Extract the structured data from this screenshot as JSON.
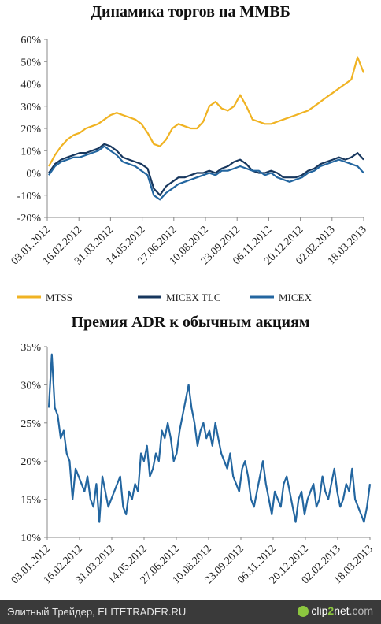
{
  "chart_data": [
    {
      "type": "line",
      "title": "Динамика торгов на ММВБ",
      "ylim": [
        -0.2,
        0.6
      ],
      "yticks": [
        "60%",
        "50%",
        "40%",
        "30%",
        "20%",
        "10%",
        "0%",
        "-10%",
        "-20%"
      ],
      "xticks": [
        "03.01.2012",
        "16.02.2012",
        "31.03.2012",
        "14.05.2012",
        "27.06.2012",
        "10.08.2012",
        "23.09.2012",
        "06.11.2012",
        "20.12.2012",
        "02.02.2013",
        "18.03.2013"
      ],
      "legend_position": "bottom",
      "series": [
        {
          "name": "MTSS",
          "color": "#f0b323",
          "values": [
            0.03,
            0.08,
            0.12,
            0.15,
            0.17,
            0.18,
            0.2,
            0.21,
            0.22,
            0.24,
            0.26,
            0.27,
            0.26,
            0.25,
            0.24,
            0.22,
            0.18,
            0.13,
            0.12,
            0.15,
            0.2,
            0.22,
            0.21,
            0.2,
            0.2,
            0.23,
            0.3,
            0.32,
            0.29,
            0.28,
            0.3,
            0.35,
            0.3,
            0.24,
            0.23,
            0.22,
            0.22,
            0.23,
            0.24,
            0.25,
            0.26,
            0.27,
            0.28,
            0.3,
            0.32,
            0.34,
            0.36,
            0.38,
            0.4,
            0.42,
            0.52,
            0.45
          ]
        },
        {
          "name": "MICEX TLC",
          "color": "#17375e",
          "values": [
            0.0,
            0.04,
            0.06,
            0.07,
            0.08,
            0.09,
            0.09,
            0.1,
            0.11,
            0.13,
            0.12,
            0.1,
            0.07,
            0.06,
            0.05,
            0.04,
            0.02,
            -0.07,
            -0.1,
            -0.06,
            -0.04,
            -0.02,
            -0.02,
            -0.01,
            0.0,
            0.0,
            0.01,
            0.0,
            0.02,
            0.03,
            0.05,
            0.06,
            0.04,
            0.01,
            0.0,
            0.0,
            0.01,
            0.0,
            -0.02,
            -0.02,
            -0.02,
            -0.01,
            0.01,
            0.02,
            0.04,
            0.05,
            0.06,
            0.07,
            0.06,
            0.07,
            0.09,
            0.06
          ]
        },
        {
          "name": "MICEX",
          "color": "#2366a0",
          "values": [
            -0.01,
            0.03,
            0.05,
            0.06,
            0.07,
            0.07,
            0.08,
            0.09,
            0.1,
            0.12,
            0.1,
            0.08,
            0.05,
            0.04,
            0.03,
            0.01,
            -0.01,
            -0.1,
            -0.12,
            -0.09,
            -0.07,
            -0.05,
            -0.04,
            -0.03,
            -0.02,
            -0.01,
            0.0,
            -0.01,
            0.01,
            0.01,
            0.02,
            0.03,
            0.02,
            0.01,
            0.01,
            -0.01,
            0.0,
            -0.02,
            -0.03,
            -0.04,
            -0.03,
            -0.02,
            0.0,
            0.01,
            0.03,
            0.04,
            0.05,
            0.06,
            0.05,
            0.04,
            0.03,
            0.0
          ]
        }
      ]
    },
    {
      "type": "line",
      "title": "Премия ADR к обычным акциям",
      "ylim": [
        0.1,
        0.35
      ],
      "yticks": [
        "35%",
        "30%",
        "25%",
        "20%",
        "15%",
        "10%"
      ],
      "xticks": [
        "03.01.2012",
        "16.02.2012",
        "31.03.2012",
        "14.05.2012",
        "27.06.2012",
        "10.08.2012",
        "23.09.2012",
        "06.11.2012",
        "20.12.2012",
        "02.02.2013",
        "18.03.2013"
      ],
      "series": [
        {
          "color": "#2366a0",
          "values": [
            0.27,
            0.34,
            0.27,
            0.26,
            0.23,
            0.24,
            0.21,
            0.2,
            0.15,
            0.19,
            0.18,
            0.17,
            0.16,
            0.18,
            0.15,
            0.14,
            0.17,
            0.12,
            0.18,
            0.16,
            0.14,
            0.15,
            0.16,
            0.17,
            0.18,
            0.14,
            0.13,
            0.16,
            0.15,
            0.17,
            0.16,
            0.21,
            0.2,
            0.22,
            0.18,
            0.19,
            0.21,
            0.2,
            0.24,
            0.23,
            0.25,
            0.23,
            0.2,
            0.21,
            0.24,
            0.26,
            0.28,
            0.3,
            0.27,
            0.25,
            0.22,
            0.24,
            0.25,
            0.23,
            0.24,
            0.22,
            0.25,
            0.23,
            0.21,
            0.2,
            0.19,
            0.21,
            0.18,
            0.17,
            0.16,
            0.19,
            0.2,
            0.18,
            0.15,
            0.14,
            0.16,
            0.18,
            0.2,
            0.17,
            0.15,
            0.13,
            0.16,
            0.15,
            0.14,
            0.17,
            0.18,
            0.16,
            0.14,
            0.12,
            0.15,
            0.16,
            0.13,
            0.15,
            0.16,
            0.17,
            0.14,
            0.15,
            0.18,
            0.16,
            0.15,
            0.17,
            0.19,
            0.16,
            0.14,
            0.15,
            0.17,
            0.16,
            0.19,
            0.15,
            0.14,
            0.13,
            0.12,
            0.14,
            0.17
          ]
        }
      ]
    }
  ],
  "footer": {
    "text": "Элитный Трейдер, ELITETRADER.RU",
    "logo_main": "clip",
    "logo_two": "2",
    "logo_net": "net",
    "logo_com": ".com"
  }
}
